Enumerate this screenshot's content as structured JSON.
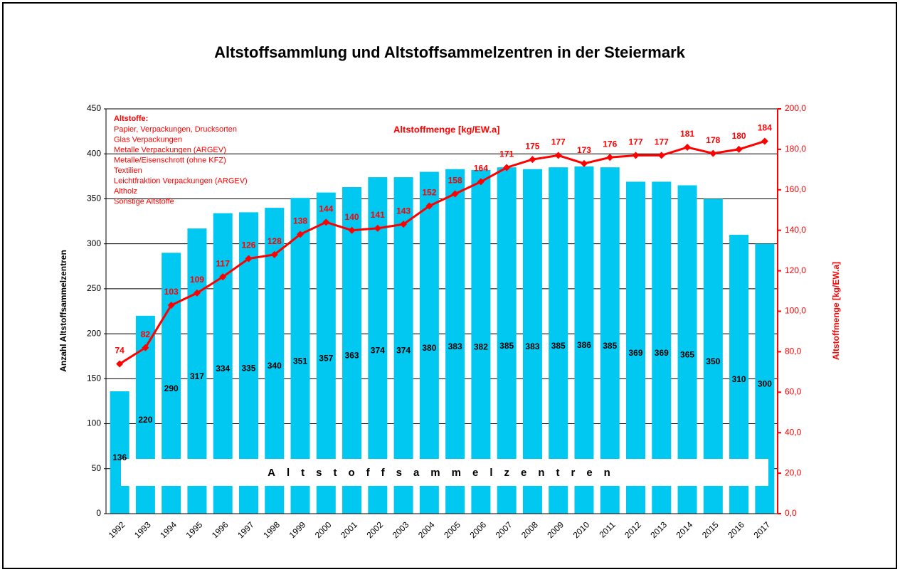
{
  "chart_data": {
    "type": "bar+line",
    "title": "Altstoffsammlung und Altstoffsammelzentren in der Steiermark",
    "ylabel": "Anzahl Altstoffsammelzentren",
    "y2label": "Altstoffmenge  [kg/EW.a]",
    "legend_title": "Altstoffe:",
    "legend_items": [
      "Papier, Verpackungen, Drucksorten",
      "Glas Verpackungen",
      "Metalle Verpackungen (ARGEV)",
      "Metalle/Eisenschrott (ohne KFZ)",
      "Textilien",
      "Leichtfraktion Verpackungen (ARGEV)",
      "Altholz",
      "Sonstige Altstoffe"
    ],
    "categories": [
      "1992",
      "1993",
      "1994",
      "1995",
      "1996",
      "1997",
      "1998",
      "1999",
      "2000",
      "2001",
      "2002",
      "2003",
      "2004",
      "2005",
      "2006",
      "2007",
      "2008",
      "2009",
      "2010",
      "2011",
      "2012",
      "2013",
      "2014",
      "2015",
      "2016",
      "2017"
    ],
    "series": [
      {
        "name": "Altstoffsammelzentren",
        "type": "bar",
        "color": "#00c8f0",
        "values": [
          136,
          220,
          290,
          317,
          334,
          335,
          340,
          351,
          357,
          363,
          374,
          374,
          380,
          383,
          382,
          385,
          383,
          385,
          386,
          385,
          369,
          369,
          365,
          350,
          310,
          300
        ]
      },
      {
        "name": "Altstoffmenge  [kg/EW.a]",
        "type": "line",
        "axis": "y2",
        "color": "#ff0000",
        "values": [
          74,
          82,
          103,
          109,
          117,
          126,
          128,
          138,
          144,
          140,
          141,
          143,
          152,
          158,
          164,
          171,
          175,
          177,
          173,
          176,
          177,
          177,
          181,
          178,
          180,
          184
        ]
      }
    ],
    "ylim": [
      0,
      450
    ],
    "yticks": [
      0,
      50,
      100,
      150,
      200,
      250,
      300,
      350,
      400,
      450
    ],
    "y2lim": [
      0,
      200
    ],
    "y2ticks": [
      {
        "value": 0,
        "label": "0,0"
      },
      {
        "value": 20,
        "label": "20,0"
      },
      {
        "value": 40,
        "label": "40,0"
      },
      {
        "value": 60,
        "label": "60,0"
      },
      {
        "value": 80,
        "label": "80,0"
      },
      {
        "value": 100,
        "label": "100,0"
      },
      {
        "value": 120,
        "label": "120,0"
      },
      {
        "value": 140,
        "label": "140,0"
      },
      {
        "value": 160,
        "label": "160,0"
      },
      {
        "value": 180,
        "label": "180,0"
      },
      {
        "value": 200,
        "label": "200,0"
      }
    ],
    "grid": true
  }
}
